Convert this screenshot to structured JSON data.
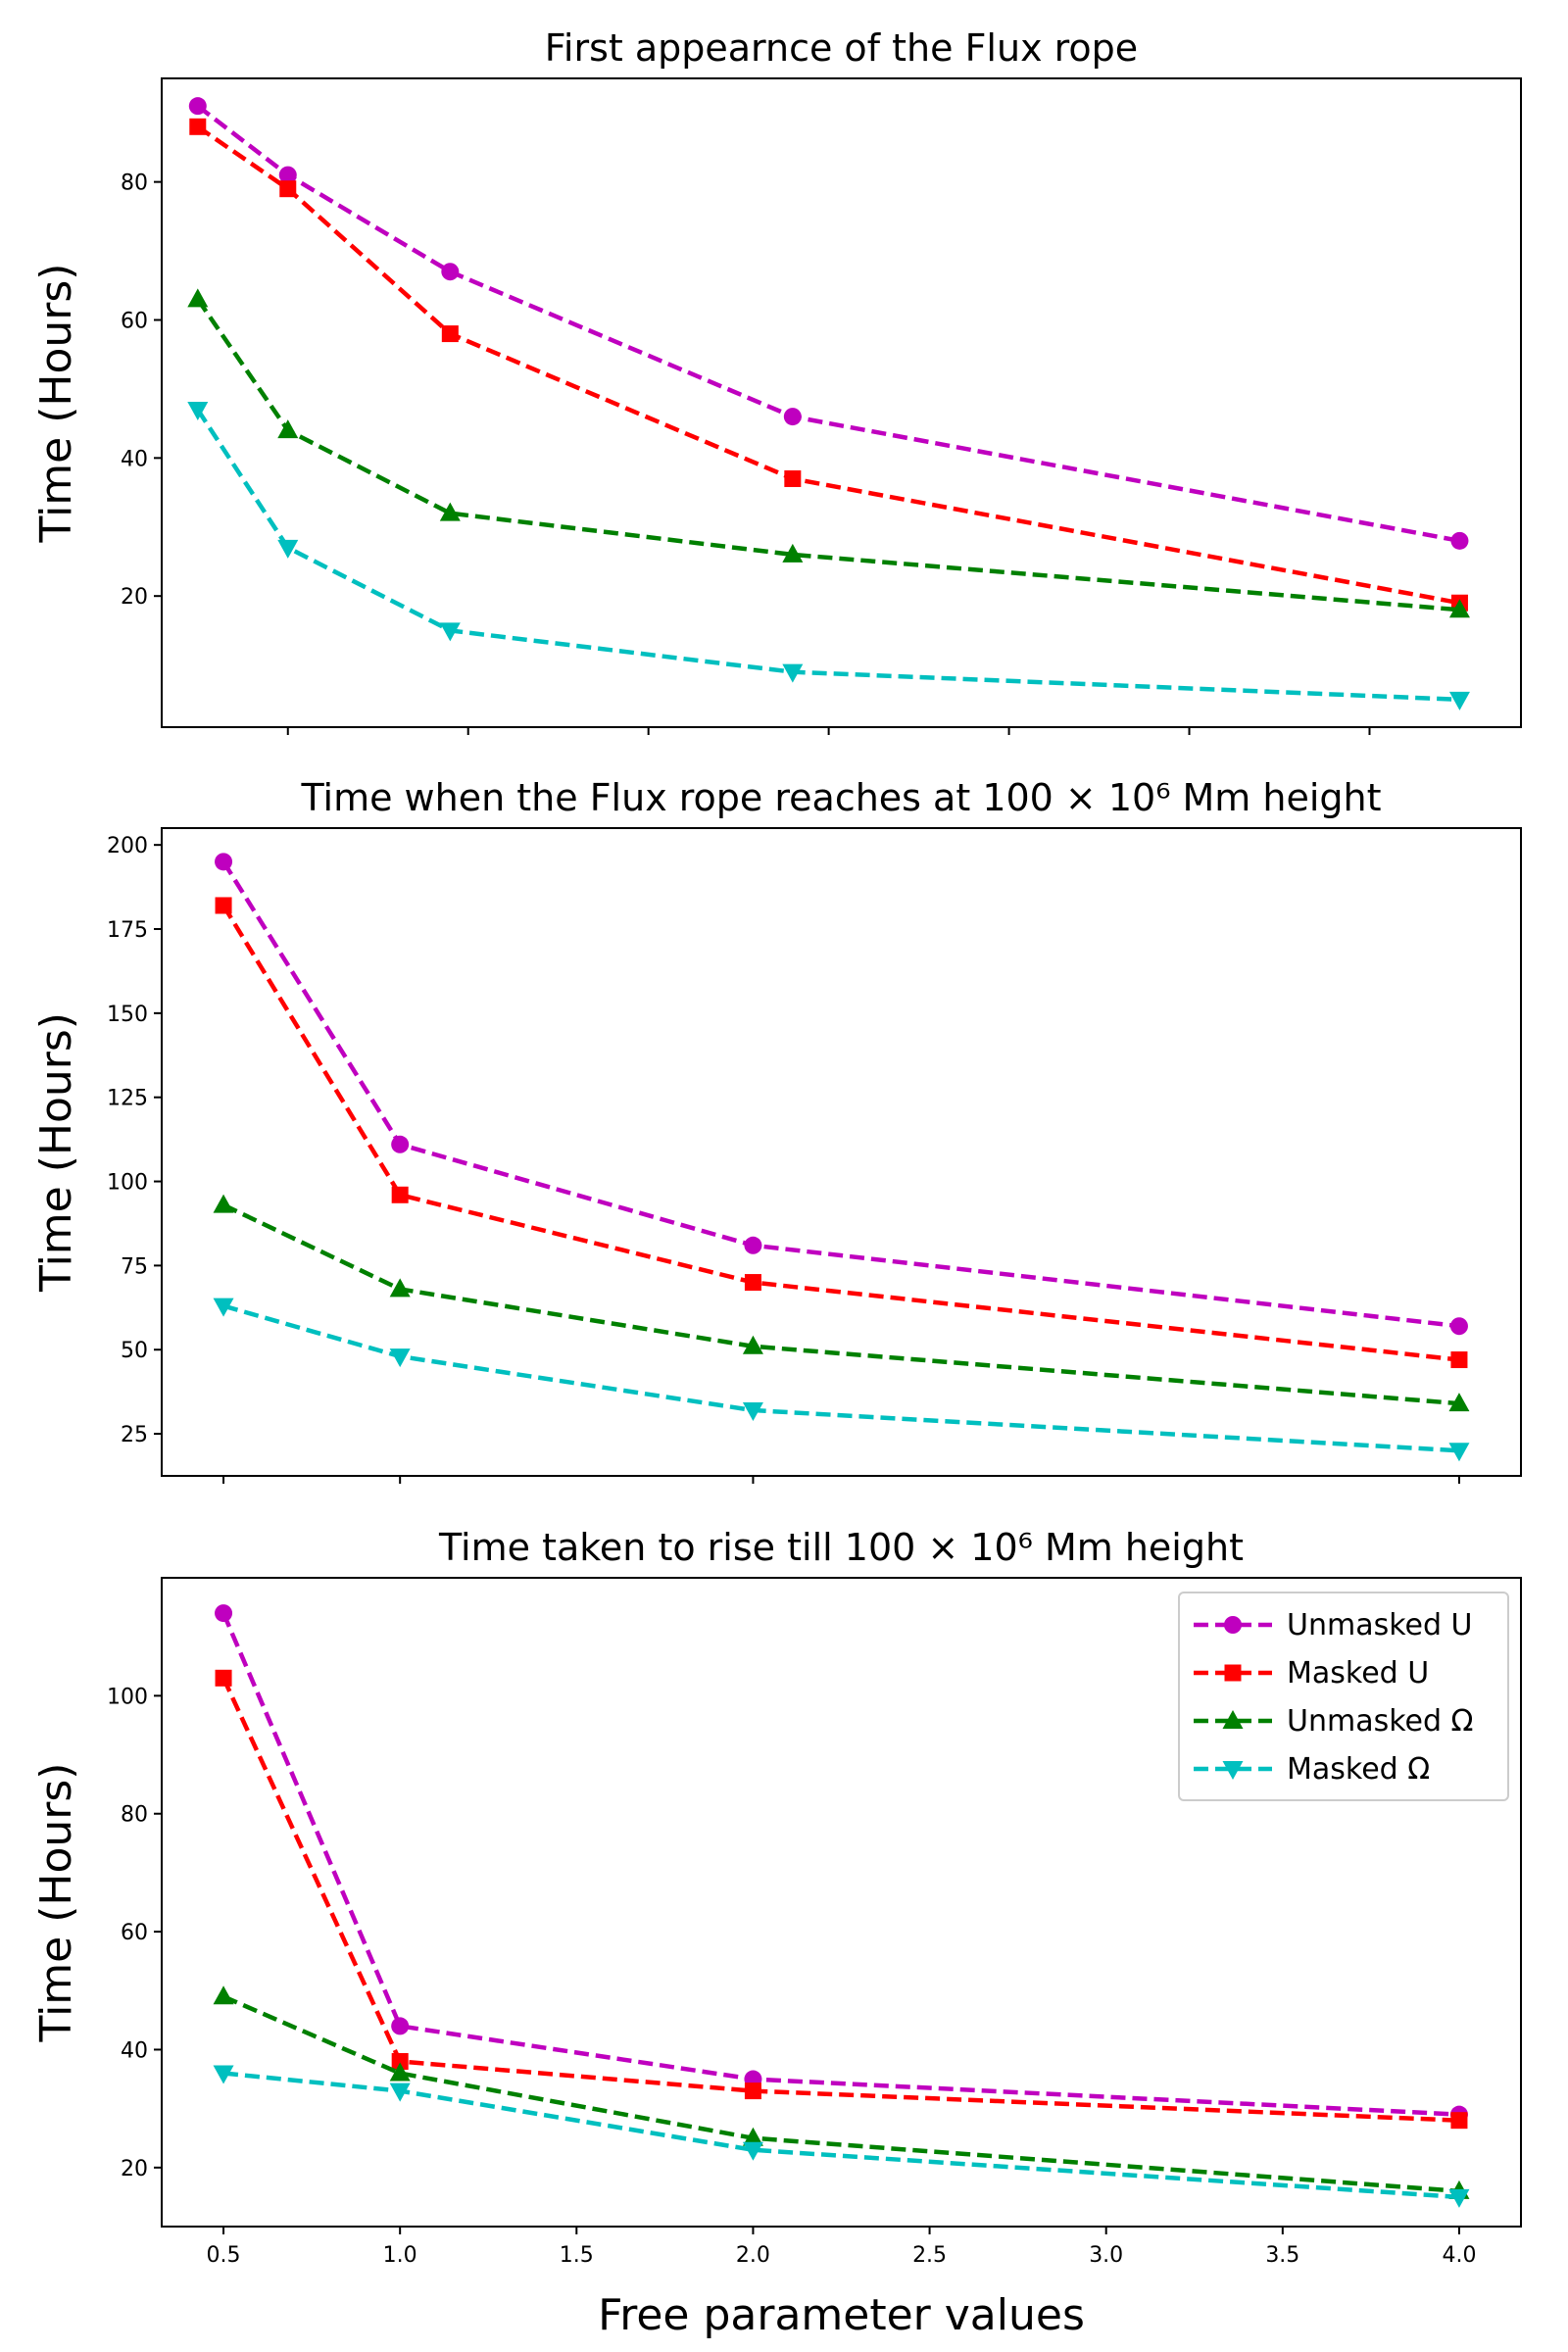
{
  "chart_data": [
    {
      "type": "line",
      "title": "First appearnce of the Flux rope",
      "ylabel": "Time (Hours)",
      "xlabel": "",
      "xlim": [
        0.4,
        4.17
      ],
      "ylim": [
        1,
        95
      ],
      "xticks": [
        0.75,
        1.25,
        1.75,
        2.25,
        2.75,
        3.25,
        3.75
      ],
      "xtick_labels": [
        "",
        "",
        "",
        "",
        "",
        "",
        ""
      ],
      "yticks": [
        20,
        40,
        60,
        80
      ],
      "ytick_labels": [
        "20",
        "40",
        "60",
        "80"
      ],
      "series": [
        {
          "name": "Unmasked U",
          "color": "#bf00bf",
          "marker": "circle",
          "x": [
            0.5,
            0.75,
            1.2,
            2.15,
            4.0
          ],
          "values": [
            91,
            81,
            67,
            46,
            28
          ]
        },
        {
          "name": "Masked U",
          "color": "#ff0000",
          "marker": "square",
          "x": [
            0.5,
            0.75,
            1.2,
            2.15,
            4.0
          ],
          "values": [
            88,
            79,
            58,
            37,
            19
          ]
        },
        {
          "name": "Unmasked Ω",
          "color": "#008000",
          "marker": "triangle-up",
          "x": [
            0.5,
            0.75,
            1.2,
            2.15,
            4.0
          ],
          "values": [
            63,
            44,
            32,
            26,
            18
          ]
        },
        {
          "name": "Masked Ω",
          "color": "#00bfbf",
          "marker": "triangle-down",
          "x": [
            0.5,
            0.75,
            1.2,
            2.15,
            4.0
          ],
          "values": [
            47,
            27,
            15,
            9,
            5
          ]
        }
      ]
    },
    {
      "type": "line",
      "title": "Time when the Flux rope reaches at 100 × 10⁶ Mm height",
      "ylabel": "Time (Hours)",
      "xlabel": "",
      "xlim": [
        0.325,
        4.175
      ],
      "ylim": [
        12.5,
        205
      ],
      "xticks": [
        0.5,
        1.0,
        2.0,
        4.0
      ],
      "xtick_labels": [
        "",
        "",
        "",
        ""
      ],
      "yticks": [
        25,
        50,
        75,
        100,
        125,
        150,
        175,
        200
      ],
      "ytick_labels": [
        "25",
        "50",
        "75",
        "100",
        "125",
        "150",
        "175",
        "200"
      ],
      "series": [
        {
          "name": "Unmasked U",
          "color": "#bf00bf",
          "marker": "circle",
          "x": [
            0.5,
            1.0,
            2.0,
            4.0
          ],
          "values": [
            195,
            111,
            81,
            57
          ]
        },
        {
          "name": "Masked U",
          "color": "#ff0000",
          "marker": "square",
          "x": [
            0.5,
            1.0,
            2.0,
            4.0
          ],
          "values": [
            182,
            96,
            70,
            47
          ]
        },
        {
          "name": "Unmasked Ω",
          "color": "#008000",
          "marker": "triangle-up",
          "x": [
            0.5,
            1.0,
            2.0,
            4.0
          ],
          "values": [
            93,
            68,
            51,
            34
          ]
        },
        {
          "name": "Masked Ω",
          "color": "#00bfbf",
          "marker": "triangle-down",
          "x": [
            0.5,
            1.0,
            2.0,
            4.0
          ],
          "values": [
            63,
            48,
            32,
            20
          ]
        }
      ]
    },
    {
      "type": "line",
      "title": "Time taken to rise till 100 × 10⁶ Mm height",
      "ylabel": "Time (Hours)",
      "xlabel": "Free parameter values",
      "xlim": [
        0.325,
        4.175
      ],
      "ylim": [
        10,
        120
      ],
      "xticks": [
        0.5,
        1.0,
        1.5,
        2.0,
        2.5,
        3.0,
        3.5,
        4.0
      ],
      "xtick_labels": [
        "0.5",
        "1.0",
        "1.5",
        "2.0",
        "2.5",
        "3.0",
        "3.5",
        "4.0"
      ],
      "yticks": [
        20,
        40,
        60,
        80,
        100
      ],
      "ytick_labels": [
        "20",
        "40",
        "60",
        "80",
        "100"
      ],
      "legend": "upper right",
      "series": [
        {
          "name": "Unmasked U",
          "color": "#bf00bf",
          "marker": "circle",
          "x": [
            0.5,
            1.0,
            2.0,
            4.0
          ],
          "values": [
            114,
            44,
            35,
            29
          ]
        },
        {
          "name": "Masked U",
          "color": "#ff0000",
          "marker": "square",
          "x": [
            0.5,
            1.0,
            2.0,
            4.0
          ],
          "values": [
            103,
            38,
            33,
            28
          ]
        },
        {
          "name": "Unmasked Ω",
          "color": "#008000",
          "marker": "triangle-up",
          "x": [
            0.5,
            1.0,
            2.0,
            4.0
          ],
          "values": [
            49,
            36,
            25,
            16
          ]
        },
        {
          "name": "Masked Ω",
          "color": "#00bfbf",
          "marker": "triangle-down",
          "x": [
            0.5,
            1.0,
            2.0,
            4.0
          ],
          "values": [
            36,
            33,
            23,
            15
          ]
        }
      ]
    }
  ]
}
